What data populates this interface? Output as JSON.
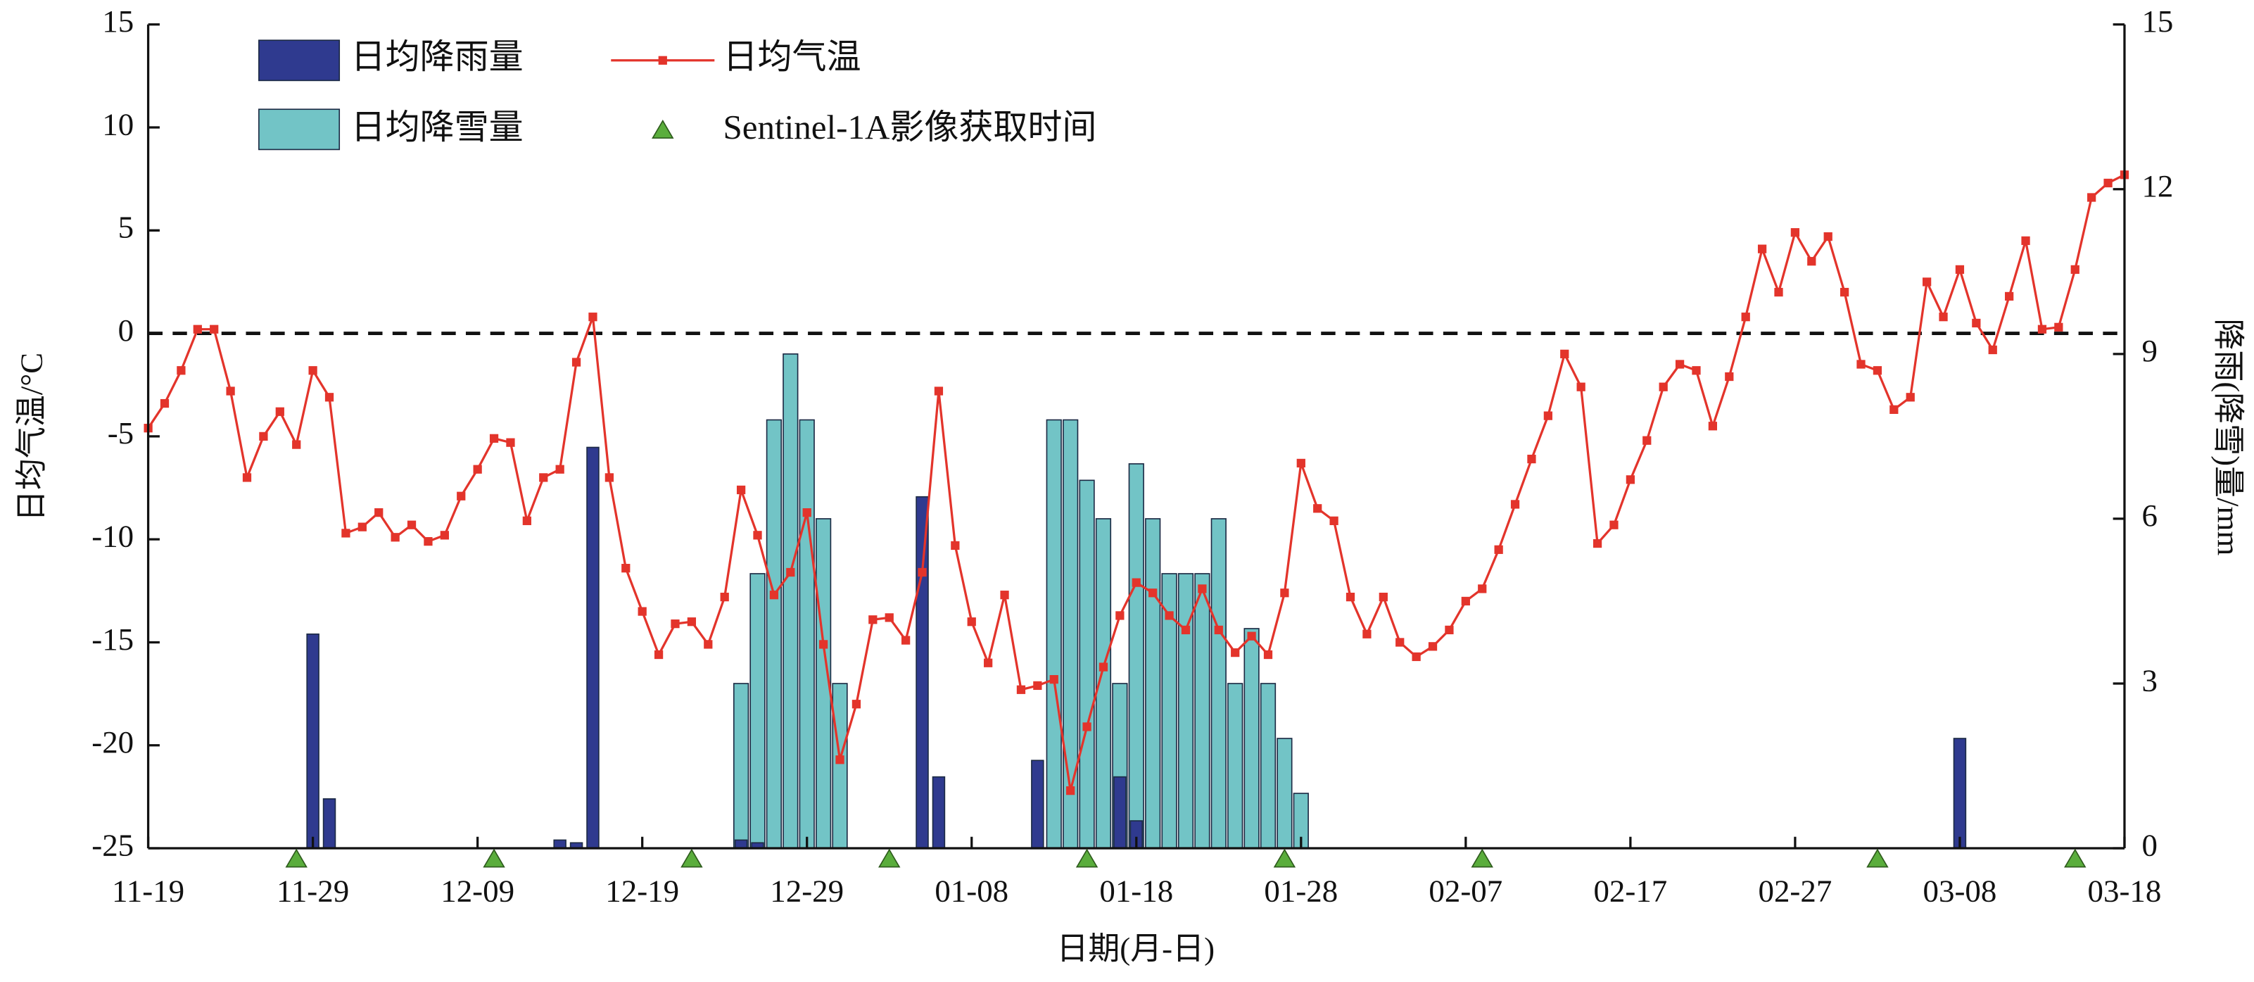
{
  "chart_data": {
    "type": "bar",
    "x_label": "日期(月-日)",
    "y_label": "日均气温/°C",
    "y2_label": "降雨(降雪)量/mm",
    "categories": [
      "11-19",
      null,
      null,
      null,
      null,
      null,
      null,
      null,
      null,
      null,
      "11-29",
      null,
      null,
      null,
      null,
      null,
      null,
      null,
      null,
      null,
      "12-09",
      null,
      null,
      null,
      null,
      null,
      null,
      null,
      null,
      null,
      "12-19",
      null,
      null,
      null,
      null,
      null,
      null,
      null,
      null,
      null,
      "12-29",
      null,
      null,
      null,
      null,
      null,
      null,
      null,
      null,
      null,
      "01-08",
      null,
      null,
      null,
      null,
      null,
      null,
      null,
      null,
      null,
      "01-18",
      null,
      null,
      null,
      null,
      null,
      null,
      null,
      null,
      null,
      "01-28",
      null,
      null,
      null,
      null,
      null,
      null,
      null,
      null,
      null,
      "02-07",
      null,
      null,
      null,
      null,
      null,
      null,
      null,
      null,
      null,
      "02-17",
      null,
      null,
      null,
      null,
      null,
      null,
      null,
      null,
      null,
      "02-27",
      null,
      null,
      null,
      null,
      null,
      null,
      null,
      null,
      null,
      "03-08",
      null,
      null,
      null,
      null,
      null,
      null,
      null,
      null,
      null,
      "03-18"
    ],
    "ylim": [
      -25,
      15
    ],
    "yticks": [
      -25,
      -20,
      -15,
      -10,
      -5,
      0,
      5,
      10,
      15
    ],
    "y2lim": [
      0,
      15
    ],
    "y2ticks": [
      0,
      3,
      6,
      9,
      12,
      15
    ],
    "reference_line": 0,
    "series": [
      {
        "name": "日均降雨量",
        "type": "bar",
        "axis": "y2",
        "color": "#2f3a8f",
        "values": [
          null,
          null,
          null,
          null,
          null,
          null,
          null,
          null,
          null,
          null,
          3.9,
          0.9,
          null,
          null,
          null,
          null,
          null,
          null,
          null,
          null,
          null,
          null,
          null,
          null,
          null,
          0.15,
          0.1,
          7.3,
          null,
          null,
          null,
          null,
          null,
          null,
          null,
          null,
          0.15,
          0.1,
          null,
          null,
          null,
          null,
          null,
          null,
          null,
          null,
          null,
          6.4,
          1.3,
          null,
          null,
          null,
          null,
          null,
          1.6,
          null,
          null,
          null,
          null,
          1.3,
          0.5,
          null,
          null,
          null,
          null,
          null,
          null,
          null,
          null,
          null,
          null,
          null,
          null,
          null,
          null,
          null,
          null,
          null,
          null,
          null,
          null,
          null,
          null,
          null,
          null,
          null,
          null,
          null,
          null,
          null,
          null,
          null,
          null,
          null,
          null,
          null,
          null,
          null,
          null,
          null,
          null,
          null,
          null,
          null,
          null,
          null,
          null,
          null,
          null,
          null,
          2.0,
          null,
          null,
          null,
          null,
          null,
          null,
          null,
          null,
          null,
          null
        ]
      },
      {
        "name": "日均降雪量",
        "type": "bar",
        "axis": "y2",
        "color": "#72c4c6",
        "values": [
          null,
          null,
          null,
          null,
          null,
          null,
          null,
          null,
          null,
          null,
          null,
          null,
          null,
          null,
          null,
          null,
          null,
          null,
          null,
          null,
          null,
          null,
          null,
          null,
          null,
          null,
          null,
          null,
          null,
          null,
          null,
          null,
          null,
          null,
          null,
          null,
          3.0,
          5.0,
          7.8,
          9.0,
          7.8,
          6.0,
          3.0,
          null,
          null,
          null,
          null,
          null,
          null,
          null,
          null,
          null,
          null,
          null,
          null,
          7.8,
          7.8,
          6.7,
          6.0,
          3.0,
          7.0,
          6.0,
          5.0,
          5.0,
          5.0,
          6.0,
          3.0,
          4.0,
          3.0,
          2.0,
          1.0,
          null,
          null,
          null,
          null,
          null,
          null,
          null,
          null,
          null,
          null,
          null,
          null,
          null,
          null,
          null,
          null,
          null,
          null,
          null,
          null,
          null,
          null,
          null,
          null,
          null,
          null,
          null,
          null,
          null,
          null,
          null,
          null,
          null,
          null,
          null,
          null,
          null,
          null,
          null,
          null,
          null,
          null,
          null,
          null,
          null,
          null,
          null,
          null,
          null,
          null
        ]
      },
      {
        "name": "日均气温",
        "type": "line",
        "axis": "y",
        "color": "#e3342b",
        "values": [
          -4.6,
          -3.4,
          -1.8,
          0.2,
          0.2,
          -2.8,
          -7.0,
          -5.0,
          -3.8,
          -5.4,
          -1.8,
          -3.1,
          -9.7,
          -9.4,
          -8.7,
          -9.9,
          -9.3,
          -10.1,
          -9.8,
          -7.9,
          -6.6,
          -5.1,
          -5.3,
          -9.1,
          -7.0,
          -6.6,
          -1.4,
          0.8,
          -7.0,
          -11.4,
          -13.5,
          -15.6,
          -14.1,
          -14.0,
          -15.1,
          -12.8,
          -7.6,
          -9.8,
          -12.7,
          -11.6,
          -8.7,
          -15.1,
          -20.7,
          -18.0,
          -13.9,
          -13.8,
          -14.9,
          -11.6,
          -2.8,
          -10.3,
          -14.0,
          -16.0,
          -12.7,
          -17.3,
          -17.1,
          -16.8,
          -22.2,
          -19.1,
          -16.2,
          -13.7,
          -12.1,
          -12.6,
          -13.7,
          -14.4,
          -12.4,
          -14.4,
          -15.5,
          -14.7,
          -15.6,
          -12.6,
          -6.3,
          -8.5,
          -9.1,
          -12.8,
          -14.6,
          -12.8,
          -15.0,
          -15.7,
          -15.2,
          -14.4,
          -13.0,
          -12.4,
          -10.5,
          -8.3,
          -6.1,
          -4.0,
          -1.0,
          -2.6,
          -10.2,
          -9.3,
          -7.1,
          -5.2,
          -2.6,
          -1.5,
          -1.8,
          -4.5,
          -2.1,
          0.8,
          4.1,
          2.0,
          4.9,
          3.5,
          4.7,
          2.0,
          -1.5,
          -1.8,
          -3.7,
          -3.1,
          2.5,
          0.8,
          3.1,
          0.5,
          -0.8,
          1.8,
          4.5,
          0.2,
          0.3,
          3.1,
          6.6,
          7.3,
          7.7
        ]
      },
      {
        "name": "Sentinel-1A影像获取时间",
        "type": "marker",
        "axis": "y2",
        "color": "#5aad3c",
        "values": [
          null,
          null,
          null,
          null,
          null,
          null,
          null,
          null,
          null,
          0,
          null,
          null,
          null,
          null,
          null,
          null,
          null,
          null,
          null,
          null,
          null,
          0,
          null,
          null,
          null,
          null,
          null,
          null,
          null,
          null,
          null,
          null,
          null,
          0,
          null,
          null,
          null,
          null,
          null,
          null,
          null,
          null,
          null,
          null,
          null,
          0,
          null,
          null,
          null,
          null,
          null,
          null,
          null,
          null,
          null,
          null,
          null,
          0,
          null,
          null,
          null,
          null,
          null,
          null,
          null,
          null,
          null,
          null,
          null,
          0,
          null,
          null,
          null,
          null,
          null,
          null,
          null,
          null,
          null,
          null,
          null,
          0,
          null,
          null,
          null,
          null,
          null,
          null,
          null,
          null,
          null,
          null,
          null,
          null,
          null,
          null,
          null,
          null,
          null,
          null,
          null,
          null,
          null,
          null,
          null,
          0,
          null,
          null,
          null,
          null,
          null,
          null,
          null,
          null,
          null,
          null,
          null,
          0,
          null,
          null,
          null
        ]
      }
    ]
  }
}
